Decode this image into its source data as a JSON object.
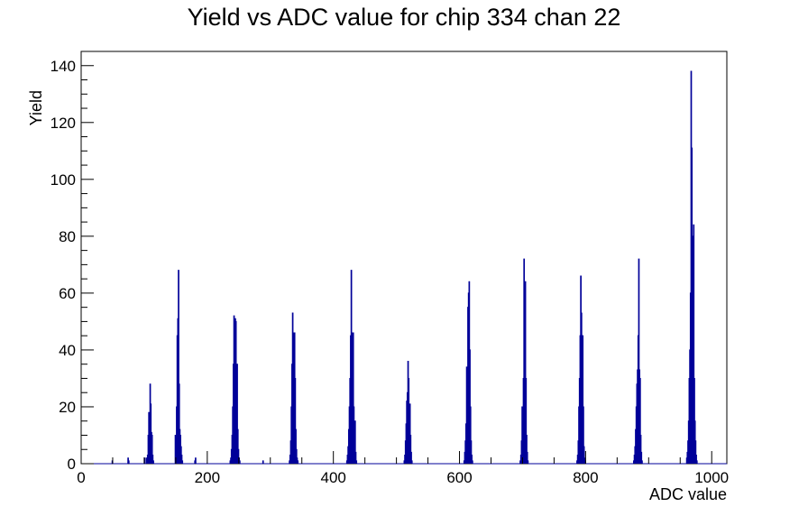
{
  "chart_data": {
    "type": "histogram",
    "title": "Yield vs ADC value for chip 334 chan 22",
    "xlabel": "ADC value",
    "ylabel": "Yield",
    "color": "#000099",
    "xlim": [
      0,
      1024
    ],
    "ylim": [
      0,
      145
    ],
    "xticks": [
      0,
      200,
      400,
      600,
      800,
      1000
    ],
    "yticks": [
      0,
      20,
      40,
      60,
      80,
      100,
      120,
      140
    ],
    "bins": [
      0,
      49,
      50,
      74,
      75,
      76,
      100,
      101,
      102,
      103,
      104,
      105,
      106,
      107,
      108,
      109,
      110,
      111,
      112,
      113,
      114,
      115,
      116,
      149,
      150,
      151,
      152,
      153,
      154,
      155,
      156,
      157,
      158,
      159,
      160,
      161,
      180,
      181,
      182,
      236,
      237,
      238,
      239,
      240,
      241,
      242,
      243,
      244,
      245,
      246,
      247,
      248,
      249,
      250,
      251,
      252,
      288,
      289,
      330,
      331,
      332,
      333,
      334,
      335,
      336,
      337,
      338,
      339,
      340,
      341,
      342,
      343,
      344,
      421,
      422,
      423,
      424,
      425,
      426,
      427,
      428,
      429,
      430,
      431,
      432,
      433,
      434,
      435,
      436,
      437,
      512,
      513,
      514,
      515,
      516,
      517,
      518,
      519,
      520,
      521,
      522,
      523,
      524,
      525,
      607,
      608,
      609,
      610,
      611,
      612,
      613,
      614,
      615,
      616,
      617,
      618,
      619,
      620,
      621,
      696,
      697,
      698,
      699,
      700,
      701,
      702,
      703,
      704,
      705,
      706,
      707,
      708,
      709,
      786,
      787,
      788,
      789,
      790,
      791,
      792,
      793,
      794,
      795,
      796,
      797,
      798,
      799,
      800,
      876,
      877,
      878,
      879,
      880,
      881,
      882,
      883,
      884,
      885,
      886,
      887,
      888,
      889,
      890,
      960,
      961,
      962,
      963,
      964,
      965,
      966,
      967,
      968,
      969,
      970,
      971,
      972,
      973,
      974,
      975,
      976,
      977,
      1024
    ],
    "counts": [
      0,
      1,
      0,
      2,
      1,
      0,
      2,
      0,
      0,
      2,
      1,
      3,
      10,
      18,
      6,
      28,
      21,
      11,
      10,
      3,
      1,
      0,
      0,
      10,
      9,
      20,
      45,
      51,
      68,
      28,
      12,
      10,
      6,
      3,
      1,
      0,
      1,
      2,
      0,
      1,
      2,
      5,
      10,
      20,
      35,
      52,
      40,
      51,
      50,
      24,
      35,
      12,
      5,
      2,
      1,
      0,
      1,
      0,
      1,
      3,
      8,
      20,
      35,
      53,
      40,
      46,
      46,
      30,
      12,
      5,
      2,
      1,
      0,
      1,
      3,
      6,
      12,
      20,
      30,
      45,
      68,
      40,
      46,
      46,
      20,
      10,
      15,
      4,
      1,
      0,
      1,
      3,
      8,
      14,
      22,
      25,
      36,
      30,
      20,
      21,
      10,
      4,
      1,
      0,
      1,
      4,
      8,
      14,
      34,
      30,
      55,
      60,
      64,
      40,
      20,
      8,
      3,
      1,
      0,
      1,
      3,
      8,
      20,
      15,
      30,
      72,
      40,
      64,
      30,
      10,
      4,
      1,
      0,
      1,
      3,
      8,
      20,
      30,
      45,
      66,
      53,
      40,
      45,
      20,
      6,
      2,
      1,
      0,
      1,
      3,
      6,
      12,
      20,
      28,
      33,
      45,
      72,
      33,
      30,
      10,
      4,
      1,
      0,
      2,
      4,
      8,
      15,
      30,
      40,
      60,
      138,
      111,
      80,
      48,
      84,
      30,
      15,
      8,
      3,
      1,
      0
    ]
  }
}
